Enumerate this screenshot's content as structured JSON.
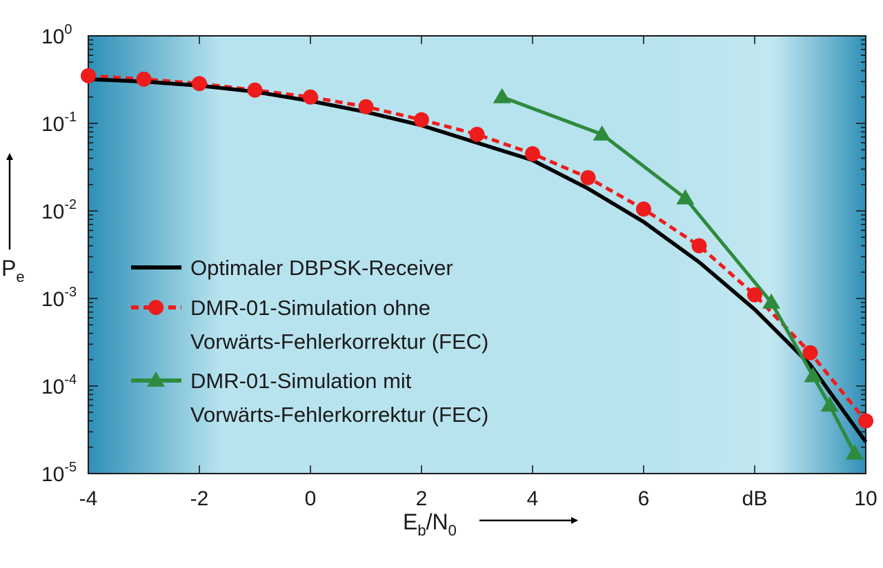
{
  "chart_data": {
    "type": "line",
    "title": "",
    "x_axis": {
      "label_main": "E",
      "label_sub": "b",
      "label_mid": "/N",
      "label_sub2": "0",
      "range": [
        -4,
        10
      ],
      "ticks": [
        {
          "value": -4,
          "label": "-4"
        },
        {
          "value": -2,
          "label": "-2"
        },
        {
          "value": 0,
          "label": "0"
        },
        {
          "value": 2,
          "label": "2"
        },
        {
          "value": 4,
          "label": "4"
        },
        {
          "value": 6,
          "label": "6"
        },
        {
          "value": 8,
          "label": "dB"
        },
        {
          "value": 10,
          "label": "10"
        }
      ]
    },
    "y_axis": {
      "label_main": "P",
      "label_sub": "e",
      "scale": "log",
      "range": [
        1e-05,
        1
      ],
      "ticks": [
        {
          "value": 1,
          "base": "10",
          "exp": "0"
        },
        {
          "value": 0.1,
          "base": "10",
          "exp": "-1"
        },
        {
          "value": 0.01,
          "base": "10",
          "exp": "-2"
        },
        {
          "value": 0.001,
          "base": "10",
          "exp": "-3"
        },
        {
          "value": 0.0001,
          "base": "10",
          "exp": "-4"
        },
        {
          "value": 1e-05,
          "base": "10",
          "exp": "-5"
        }
      ]
    },
    "series": [
      {
        "name": "Optimaler DBPSK-Receiver",
        "legend_lines": [
          "Optimaler DBPSK-Receiver"
        ],
        "style": "solid",
        "marker": "none",
        "color": "#000000",
        "x": [
          -4,
          -3,
          -2,
          -1,
          0,
          1,
          2,
          3,
          4,
          5,
          6,
          7,
          8,
          9,
          10
        ],
        "y": [
          0.32,
          0.3,
          0.27,
          0.23,
          0.18,
          0.135,
          0.095,
          0.06,
          0.038,
          0.018,
          0.0075,
          0.0026,
          0.00075,
          0.000175,
          2.3e-05
        ]
      },
      {
        "name": "DMR-01-Simulation ohne Vorwärts-Fehlerkorrektur (FEC)",
        "legend_lines": [
          "DMR-01-Simulation ohne",
          "Vorwärts-Fehlerkorrektur (FEC)"
        ],
        "style": "dashed",
        "marker": "circle",
        "color": "#ee1c1c",
        "x": [
          -4,
          -3,
          -2,
          -1,
          0,
          1,
          2,
          3,
          4,
          5,
          6,
          7,
          8,
          9,
          10
        ],
        "y": [
          0.35,
          0.32,
          0.285,
          0.24,
          0.2,
          0.155,
          0.11,
          0.075,
          0.045,
          0.024,
          0.0105,
          0.004,
          0.0011,
          0.00024,
          4e-05
        ]
      },
      {
        "name": "DMR-01-Simulation mit Vorwärts-Fehlerkorrektur (FEC)",
        "legend_lines": [
          "DMR-01-Simulation mit",
          "Vorwärts-Fehlerkorrektur (FEC)"
        ],
        "style": "solid",
        "marker": "triangle",
        "color": "#2e8b3e",
        "x": [
          3.45,
          5.25,
          6.75,
          8.3,
          9.05,
          9.35,
          9.8
        ],
        "y": [
          0.2,
          0.075,
          0.014,
          0.0009,
          0.00013,
          6e-05,
          1.7e-05
        ]
      }
    ],
    "colors": {
      "plot_bg_edge": "#2f8fb7",
      "plot_bg_center": "#b7e3ee"
    }
  }
}
